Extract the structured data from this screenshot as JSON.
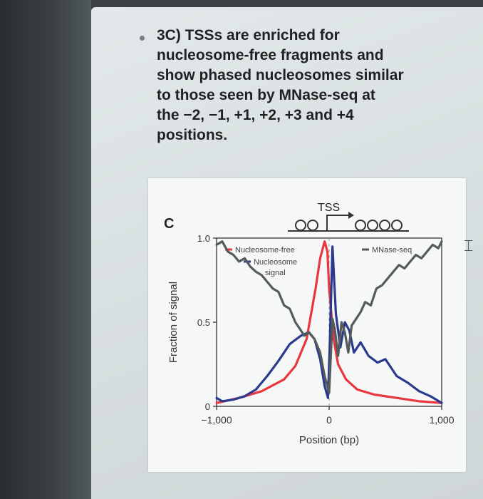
{
  "caption": "3C) TSSs are enriched for\nnucleosome-free fragments and\nshow phased nucleosomes similar\nto those seen by MNase-seq at\nthe −2, −1, +1, +2, +3 and +4\npositions.",
  "figure": {
    "panel_letter": "C",
    "tss_label": "TSS",
    "nucleosome_marks": {
      "upstream": 2,
      "downstream": 4
    },
    "legend": {
      "nucleosome_free": "Nucleosome-free",
      "nucleosome_signal_line1": "Nucleosome",
      "nucleosome_signal_line2": "signal",
      "mnase": "MNase-seq"
    }
  },
  "chart_data": {
    "type": "line",
    "xlabel": "Position (bp)",
    "ylabel": "Fraction of signal",
    "xlim": [
      -1000,
      1000
    ],
    "ylim": [
      0,
      1.0
    ],
    "x_ticks": [
      "−1,000",
      "0",
      "1,000"
    ],
    "y_ticks": [
      "0",
      "0.5",
      "1.0"
    ],
    "grid": false,
    "legend_position": "top",
    "series": [
      {
        "name": "Nucleosome-free",
        "color": "#e8373d",
        "x": [
          -1000,
          -800,
          -600,
          -400,
          -300,
          -200,
          -120,
          -80,
          -40,
          -15,
          0,
          40,
          80,
          150,
          250,
          400,
          600,
          800,
          1000
        ],
        "y": [
          0.02,
          0.05,
          0.09,
          0.16,
          0.24,
          0.4,
          0.7,
          0.88,
          0.98,
          0.92,
          0.7,
          0.4,
          0.25,
          0.16,
          0.1,
          0.07,
          0.05,
          0.03,
          0.02
        ]
      },
      {
        "name": "Nucleosome signal",
        "color": "#2b3a8e",
        "x": [
          -1000,
          -950,
          -850,
          -750,
          -650,
          -550,
          -450,
          -350,
          -250,
          -180,
          -130,
          -80,
          -40,
          -10,
          5,
          30,
          60,
          100,
          140,
          180,
          220,
          280,
          350,
          430,
          500,
          600,
          700,
          800,
          900,
          1000
        ],
        "y": [
          0.05,
          0.03,
          0.04,
          0.06,
          0.1,
          0.18,
          0.27,
          0.37,
          0.42,
          0.44,
          0.4,
          0.28,
          0.12,
          0.05,
          0.35,
          0.95,
          0.55,
          0.35,
          0.5,
          0.45,
          0.32,
          0.38,
          0.3,
          0.26,
          0.28,
          0.18,
          0.14,
          0.09,
          0.06,
          0.02
        ]
      },
      {
        "name": "MNase-seq",
        "color": "#555a5c",
        "x": [
          -1000,
          -950,
          -900,
          -850,
          -800,
          -750,
          -700,
          -650,
          -600,
          -550,
          -500,
          -450,
          -400,
          -350,
          -300,
          -260,
          -220,
          -180,
          -130,
          -80,
          -40,
          0,
          30,
          50,
          80,
          110,
          140,
          170,
          200,
          240,
          280,
          320,
          370,
          420,
          470,
          520,
          570,
          620,
          670,
          720,
          770,
          820,
          870,
          920,
          970,
          1000
        ],
        "y": [
          0.96,
          0.98,
          0.92,
          0.9,
          0.86,
          0.88,
          0.83,
          0.8,
          0.78,
          0.74,
          0.7,
          0.68,
          0.6,
          0.58,
          0.5,
          0.46,
          0.42,
          0.44,
          0.4,
          0.32,
          0.18,
          0.08,
          0.52,
          0.46,
          0.3,
          0.5,
          0.44,
          0.32,
          0.48,
          0.52,
          0.56,
          0.62,
          0.6,
          0.7,
          0.72,
          0.76,
          0.8,
          0.84,
          0.82,
          0.86,
          0.9,
          0.88,
          0.92,
          0.96,
          0.94,
          0.98
        ]
      }
    ]
  }
}
